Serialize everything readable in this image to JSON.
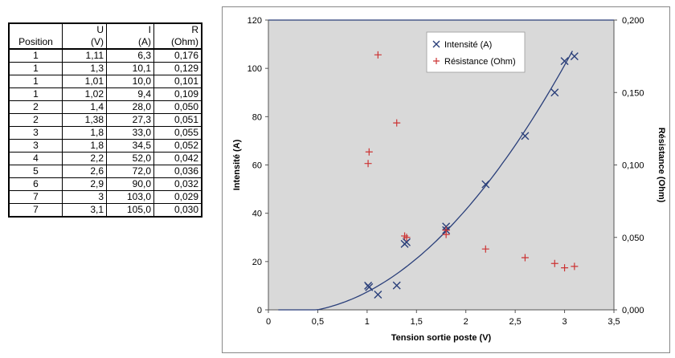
{
  "table": {
    "header_row1": [
      "",
      "U",
      "I",
      "R"
    ],
    "header_row2": [
      "Position",
      "(V)",
      "(A)",
      "(Ohm)"
    ],
    "rows": [
      [
        "1",
        "1,11",
        "6,3",
        "0,176"
      ],
      [
        "1",
        "1,3",
        "10,1",
        "0,129"
      ],
      [
        "1",
        "1,01",
        "10,0",
        "0,101"
      ],
      [
        "1",
        "1,02",
        "9,4",
        "0,109"
      ],
      [
        "2",
        "1,4",
        "28,0",
        "0,050"
      ],
      [
        "2",
        "1,38",
        "27,3",
        "0,051"
      ],
      [
        "3",
        "1,8",
        "33,0",
        "0,055"
      ],
      [
        "3",
        "1,8",
        "34,5",
        "0,052"
      ],
      [
        "4",
        "2,2",
        "52,0",
        "0,042"
      ],
      [
        "5",
        "2,6",
        "72,0",
        "0,036"
      ],
      [
        "6",
        "2,9",
        "90,0",
        "0,032"
      ],
      [
        "7",
        "3",
        "103,0",
        "0,029"
      ],
      [
        "7",
        "3,1",
        "105,0",
        "0,030"
      ]
    ]
  },
  "chart_data": {
    "type": "scatter",
    "xlabel": "Tension sortie poste (V)",
    "ylabel": "Intensité (A)",
    "y2label": "Résistance (Ohm)",
    "xlim": [
      0,
      3.5
    ],
    "ylim": [
      0,
      120
    ],
    "y2lim": [
      0,
      0.2
    ],
    "x_ticks": [
      "0",
      "0,5",
      "1",
      "1,5",
      "2",
      "2,5",
      "3",
      "3,5"
    ],
    "y_ticks": [
      "0",
      "20",
      "40",
      "60",
      "80",
      "100",
      "120"
    ],
    "y2_ticks": [
      "0,000",
      "0,050",
      "0,100",
      "0,150",
      "0,200"
    ],
    "legend_position": "top-right",
    "grid": false,
    "series": [
      {
        "name": "Intensité (A)",
        "axis": "left",
        "marker": "x",
        "color": "#2a3f7a",
        "points": [
          [
            1.11,
            6.3
          ],
          [
            1.3,
            10.1
          ],
          [
            1.01,
            10.0
          ],
          [
            1.02,
            9.4
          ],
          [
            1.4,
            28.0
          ],
          [
            1.38,
            27.3
          ],
          [
            1.8,
            33.0
          ],
          [
            1.8,
            34.5
          ],
          [
            2.2,
            52.0
          ],
          [
            2.6,
            72.0
          ],
          [
            2.9,
            90.0
          ],
          [
            3.0,
            103.0
          ],
          [
            3.1,
            105.0
          ]
        ]
      },
      {
        "name": "Résistance (Ohm)",
        "axis": "right",
        "marker": "+",
        "color": "#cc3333",
        "points": [
          [
            1.11,
            0.176
          ],
          [
            1.3,
            0.129
          ],
          [
            1.01,
            0.101
          ],
          [
            1.02,
            0.109
          ],
          [
            1.4,
            0.05
          ],
          [
            1.38,
            0.051
          ],
          [
            1.8,
            0.055
          ],
          [
            1.8,
            0.052
          ],
          [
            2.2,
            0.042
          ],
          [
            2.6,
            0.036
          ],
          [
            2.9,
            0.032
          ],
          [
            3.0,
            0.029
          ],
          [
            3.1,
            0.03
          ]
        ]
      }
    ],
    "trendline": {
      "type": "polynomial",
      "color": "#2a3f7a",
      "x_range": [
        0.1,
        3.08
      ],
      "coefficients": [
        -0.85,
        -4.65,
        12.9
      ]
    }
  }
}
